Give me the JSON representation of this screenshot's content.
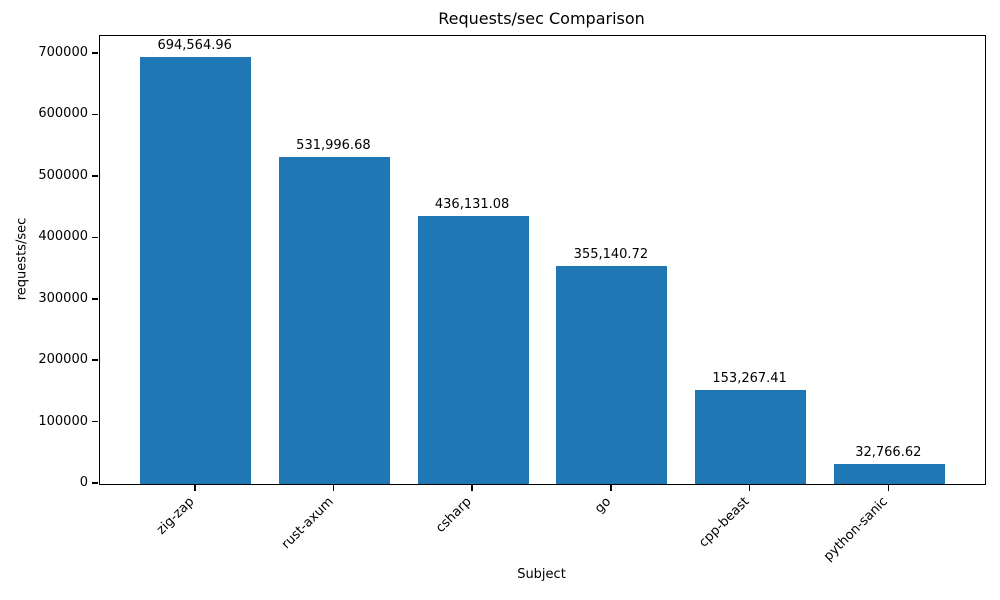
{
  "chart_data": {
    "type": "bar",
    "title": "Requests/sec Comparison",
    "xlabel": "Subject",
    "ylabel": "requests/sec",
    "categories": [
      "zig-zap",
      "rust-axum",
      "csharp",
      "go",
      "cpp-beast",
      "python-sanic"
    ],
    "values": [
      694564.96,
      531996.68,
      436131.08,
      355140.72,
      153267.41,
      32766.62
    ],
    "bar_labels": [
      "694,564.96",
      "531,996.68",
      "436,131.08",
      "355,140.72",
      "153,267.41",
      "32,766.62"
    ],
    "bar_color": "#1f77b4",
    "ylim": [
      0,
      729293
    ],
    "yticks": [
      0,
      100000,
      200000,
      300000,
      400000,
      500000,
      600000,
      700000
    ],
    "ytick_labels": [
      "0",
      "100000",
      "200000",
      "300000",
      "400000",
      "500000",
      "600000",
      "700000"
    ],
    "xtick_rotation_deg": 45,
    "grid": false,
    "legend": "none"
  }
}
